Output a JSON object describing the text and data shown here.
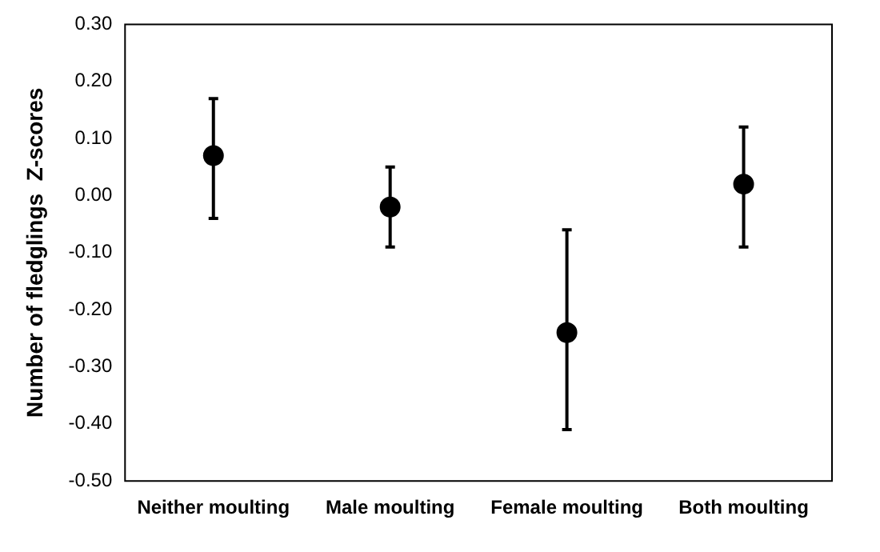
{
  "chart_data": {
    "type": "scatter",
    "ylabel": "Number of fledglings  Z-scores",
    "categories": [
      "Neither moulting",
      "Male moulting",
      "Female moulting",
      "Both moulting"
    ],
    "values": [
      0.07,
      -0.02,
      -0.24,
      0.02
    ],
    "errors": [
      [
        -0.04,
        0.17
      ],
      [
        -0.09,
        0.05
      ],
      [
        -0.41,
        -0.06
      ],
      [
        -0.09,
        0.12
      ]
    ],
    "color": "#000000",
    "marker": "circle",
    "ylim": [
      -0.5,
      0.3
    ],
    "yticks": [
      {
        "value": -0.5,
        "label": "-0.50"
      },
      {
        "value": -0.4,
        "label": "-0.40"
      },
      {
        "value": -0.3,
        "label": "-0.30"
      },
      {
        "value": -0.2,
        "label": "-0.20"
      },
      {
        "value": -0.1,
        "label": "-0.10"
      },
      {
        "value": 0,
        "label": "0.00"
      },
      {
        "value": 0.1,
        "label": "0.10"
      },
      {
        "value": 0.2,
        "label": "0.20"
      },
      {
        "value": 0.3,
        "label": "0.30"
      }
    ],
    "grid": false,
    "legend": false
  }
}
